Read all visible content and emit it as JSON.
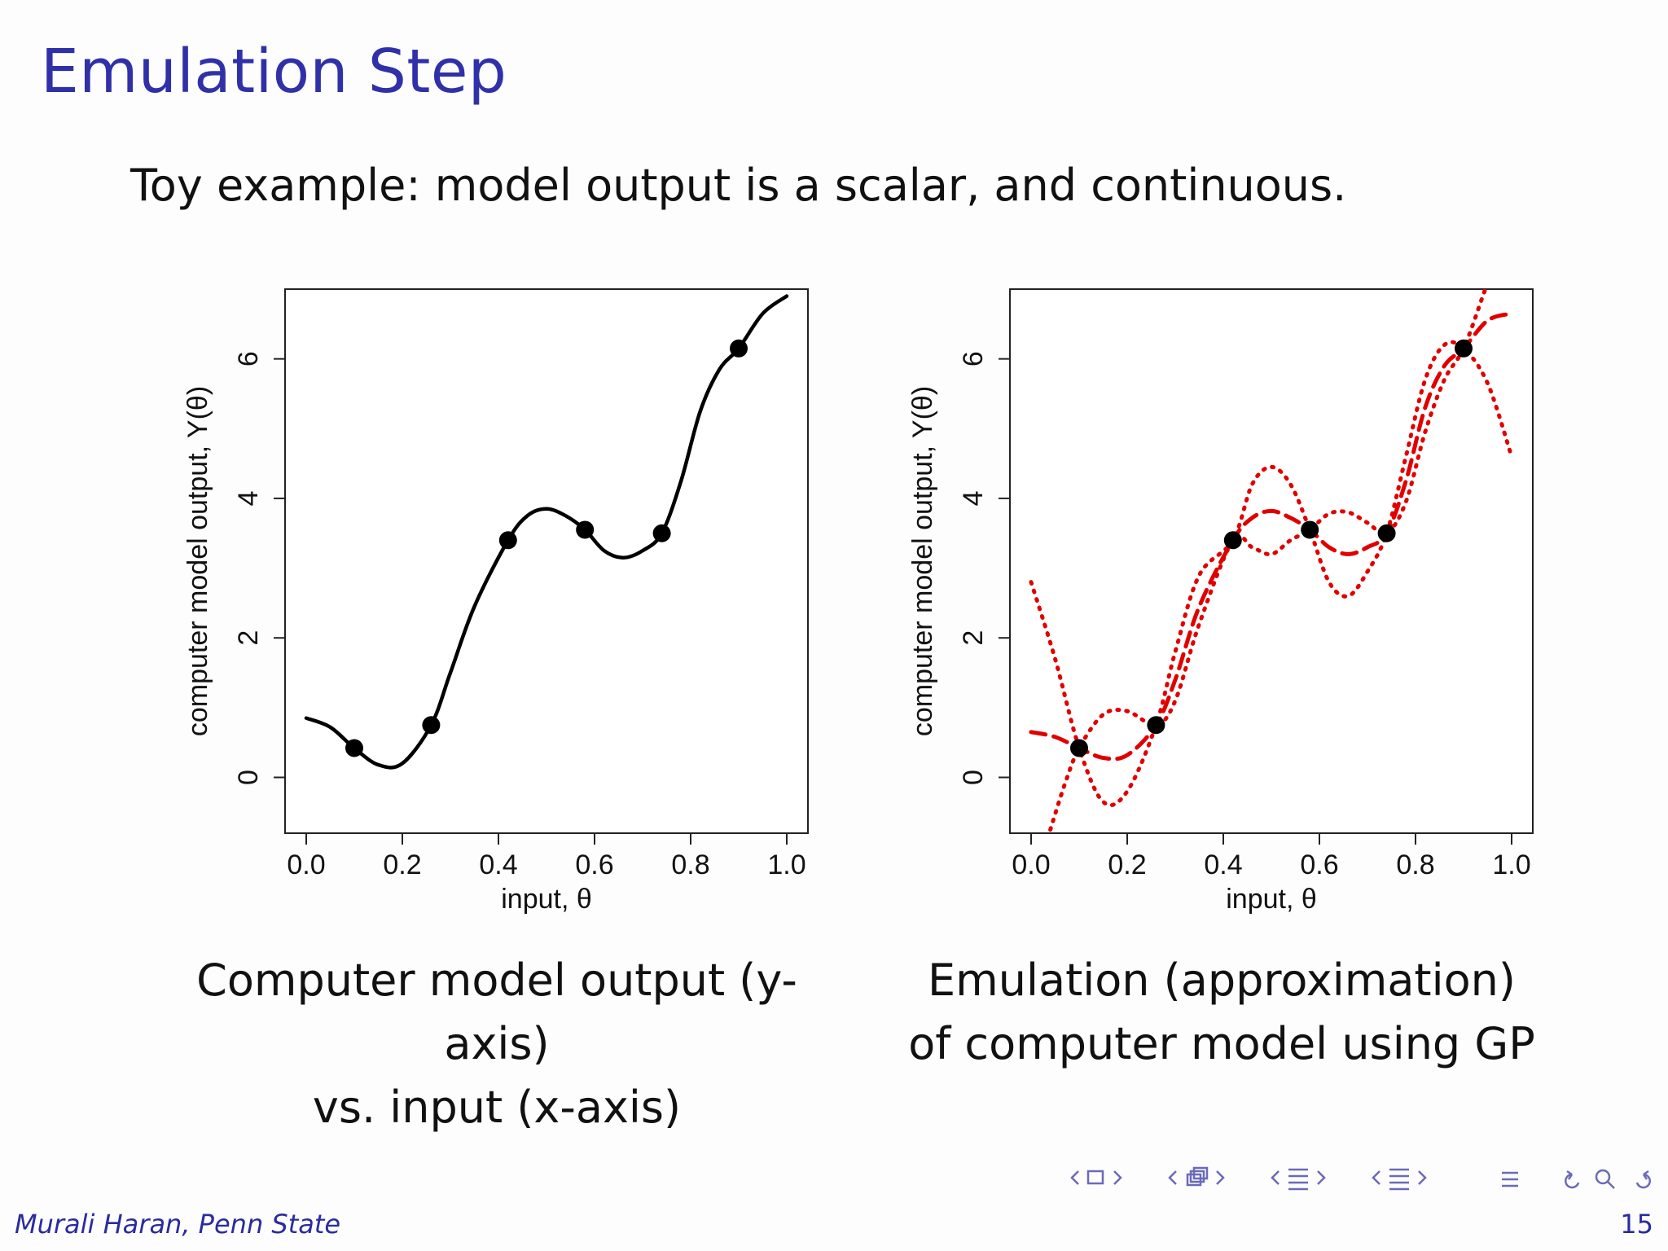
{
  "slide": {
    "title": "Emulation Step",
    "subtitle": "Toy example: model output is a scalar, and continuous.",
    "caption_left_line1": "Computer model output (y-axis)",
    "caption_left_line2": "vs. input (x-axis)",
    "caption_right_line1": "Emulation (approximation)",
    "caption_right_line2": "of computer model using GP",
    "footer_author": "Murali Haran, Penn State",
    "page_number": "15"
  },
  "navigation": {
    "icons": [
      "nav-left-arrow-icon",
      "frame-icon",
      "nav-right-arrow-icon",
      "nav-left-arrow-icon",
      "subsection-icon",
      "nav-right-arrow-icon",
      "nav-left-arrow-icon",
      "section-icon",
      "nav-right-arrow-icon",
      "nav-left-arrow-icon",
      "slide-list-icon",
      "nav-right-arrow-icon",
      "toc-icon",
      "undo-icon",
      "search-icon",
      "redo-icon"
    ],
    "color": "#6a6ab8"
  },
  "chart_data": [
    {
      "type": "line",
      "xlabel": "input, θ",
      "ylabel": "computer model output,  Y(θ)",
      "xlim": [
        0.0,
        1.0
      ],
      "ylim": [
        -0.8,
        7.0
      ],
      "xticks": [
        "0.0",
        "0.2",
        "0.4",
        "0.6",
        "0.8",
        "1.0"
      ],
      "yticks": [
        "0",
        "2",
        "4",
        "6"
      ],
      "grid": false,
      "series": [
        {
          "color": "#000000",
          "style": "solid",
          "x": [
            0.0,
            0.05,
            0.1,
            0.15,
            0.2,
            0.26,
            0.3,
            0.35,
            0.42,
            0.46,
            0.5,
            0.54,
            0.58,
            0.62,
            0.66,
            0.7,
            0.74,
            0.78,
            0.82,
            0.86,
            0.9,
            0.95,
            1.0
          ],
          "y": [
            0.85,
            0.72,
            0.42,
            0.18,
            0.2,
            0.75,
            1.5,
            2.45,
            3.4,
            3.75,
            3.85,
            3.75,
            3.55,
            3.25,
            3.15,
            3.25,
            3.5,
            4.25,
            5.25,
            5.85,
            6.15,
            6.65,
            6.9
          ]
        }
      ],
      "points": {
        "x": [
          0.1,
          0.26,
          0.42,
          0.58,
          0.74,
          0.9
        ],
        "y": [
          0.42,
          0.75,
          3.4,
          3.55,
          3.5,
          6.15
        ],
        "color": "#000000"
      }
    },
    {
      "type": "line",
      "xlabel": "input, θ",
      "ylabel": "computer model output,  Y(θ)",
      "xlim": [
        0.0,
        1.0
      ],
      "ylim": [
        -0.8,
        7.0
      ],
      "xticks": [
        "0.0",
        "0.2",
        "0.4",
        "0.6",
        "0.8",
        "1.0"
      ],
      "yticks": [
        "0",
        "2",
        "4",
        "6"
      ],
      "grid": false,
      "series": [
        {
          "color": "#e00000",
          "style": "dashed",
          "x": [
            0.0,
            0.05,
            0.1,
            0.15,
            0.2,
            0.26,
            0.3,
            0.35,
            0.42,
            0.46,
            0.5,
            0.54,
            0.58,
            0.62,
            0.66,
            0.7,
            0.74,
            0.78,
            0.82,
            0.86,
            0.9,
            0.95,
            1.0
          ],
          "y": [
            0.65,
            0.58,
            0.42,
            0.28,
            0.32,
            0.75,
            1.4,
            2.45,
            3.4,
            3.72,
            3.82,
            3.72,
            3.55,
            3.3,
            3.2,
            3.3,
            3.5,
            4.25,
            5.3,
            5.9,
            6.15,
            6.55,
            6.65
          ]
        },
        {
          "color": "#e00000",
          "style": "dotted",
          "x": [
            0.0,
            0.05,
            0.1,
            0.15,
            0.2,
            0.26,
            0.3,
            0.35,
            0.42,
            0.46,
            0.5,
            0.54,
            0.58,
            0.62,
            0.66,
            0.7,
            0.74,
            0.78,
            0.82,
            0.86,
            0.9,
            0.95,
            1.0
          ],
          "y": [
            2.8,
            1.7,
            0.42,
            -0.35,
            -0.2,
            0.75,
            1.8,
            2.9,
            3.4,
            4.2,
            4.45,
            4.2,
            3.55,
            2.8,
            2.6,
            2.95,
            3.5,
            4.6,
            5.7,
            6.2,
            6.15,
            5.65,
            4.6
          ]
        },
        {
          "color": "#e00000",
          "style": "dotted",
          "x": [
            0.04,
            0.07,
            0.1,
            0.15,
            0.2,
            0.26,
            0.3,
            0.35,
            0.42,
            0.46,
            0.5,
            0.54,
            0.58,
            0.62,
            0.66,
            0.7,
            0.74,
            0.78,
            0.82,
            0.86,
            0.9,
            0.94,
            0.96
          ],
          "y": [
            -0.75,
            -0.1,
            0.42,
            0.9,
            0.95,
            0.75,
            1.1,
            2.2,
            3.4,
            3.3,
            3.2,
            3.4,
            3.55,
            3.78,
            3.8,
            3.65,
            3.5,
            3.95,
            4.95,
            5.7,
            6.15,
            6.9,
            7.3
          ]
        }
      ],
      "points": {
        "x": [
          0.1,
          0.26,
          0.42,
          0.58,
          0.74,
          0.9
        ],
        "y": [
          0.42,
          0.75,
          3.4,
          3.55,
          3.5,
          6.15
        ],
        "color": "#000000"
      }
    }
  ]
}
